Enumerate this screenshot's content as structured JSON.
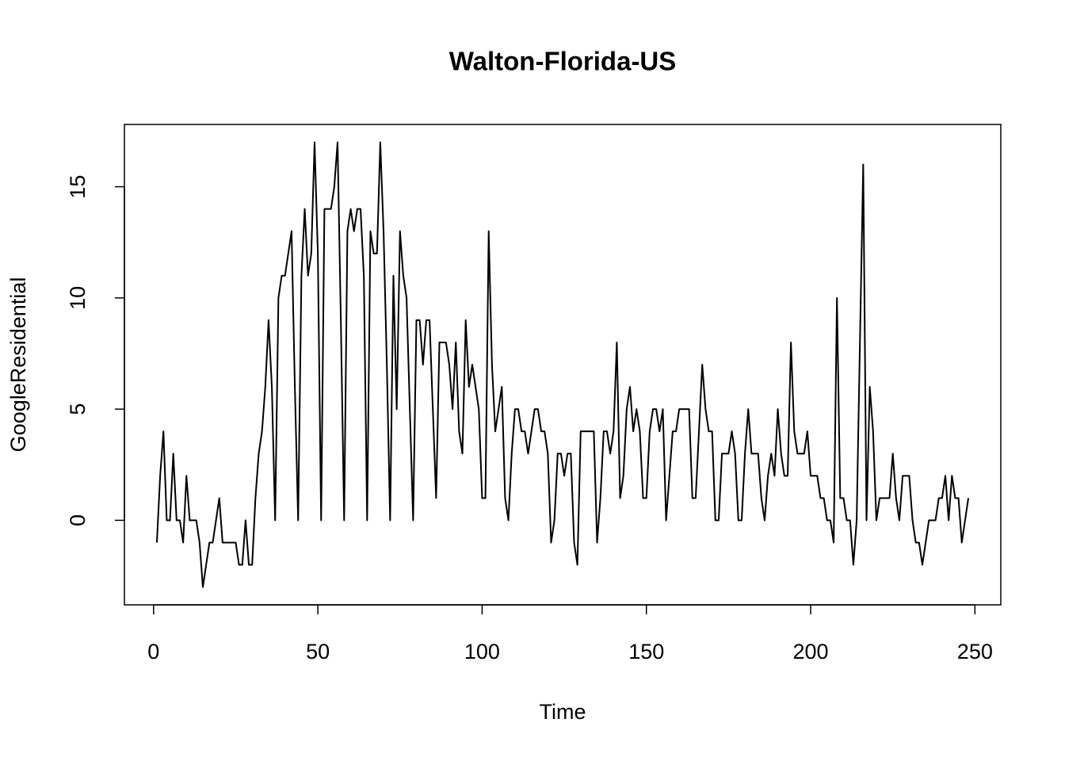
{
  "chart_data": {
    "type": "line",
    "title": "Walton-Florida-US",
    "x_label": "Time",
    "y_label": "GoogleResidential",
    "x": [
      1,
      2,
      3,
      4,
      5,
      6,
      7,
      8,
      9,
      10,
      11,
      12,
      13,
      14,
      15,
      16,
      17,
      18,
      19,
      20,
      21,
      22,
      23,
      24,
      25,
      26,
      27,
      28,
      29,
      30,
      31,
      32,
      33,
      34,
      35,
      36,
      37,
      38,
      39,
      40,
      41,
      42,
      43,
      44,
      45,
      46,
      47,
      48,
      49,
      50,
      51,
      52,
      53,
      54,
      55,
      56,
      57,
      58,
      59,
      60,
      61,
      62,
      63,
      64,
      65,
      66,
      67,
      68,
      69,
      70,
      71,
      72,
      73,
      74,
      75,
      76,
      77,
      78,
      79,
      80,
      81,
      82,
      83,
      84,
      85,
      86,
      87,
      88,
      89,
      90,
      91,
      92,
      93,
      94,
      95,
      96,
      97,
      98,
      99,
      100,
      101,
      102,
      103,
      104,
      105,
      106,
      107,
      108,
      109,
      110,
      111,
      112,
      113,
      114,
      115,
      116,
      117,
      118,
      119,
      120,
      121,
      122,
      123,
      124,
      125,
      126,
      127,
      128,
      129,
      130,
      131,
      132,
      133,
      134,
      135,
      136,
      137,
      138,
      139,
      140,
      141,
      142,
      143,
      144,
      145,
      146,
      147,
      148,
      149,
      150,
      151,
      152,
      153,
      154,
      155,
      156,
      157,
      158,
      159,
      160,
      161,
      162,
      163,
      164,
      165,
      166,
      167,
      168,
      169,
      170,
      171,
      172,
      173,
      174,
      175,
      176,
      177,
      178,
      179,
      180,
      181,
      182,
      183,
      184,
      185,
      186,
      187,
      188,
      189,
      190,
      191,
      192,
      193,
      194,
      195,
      196,
      197,
      198,
      199,
      200,
      201,
      202,
      203,
      204,
      205,
      206,
      207,
      208,
      209,
      210,
      211,
      212,
      213,
      214,
      215,
      216,
      217,
      218,
      219,
      220,
      221,
      222,
      223,
      224,
      225,
      226,
      227,
      228,
      229,
      230,
      231,
      232,
      233,
      234,
      235,
      236,
      237,
      238,
      239,
      240,
      241,
      242,
      243,
      244,
      245,
      246,
      247,
      248
    ],
    "series": [
      {
        "name": "GoogleResidential",
        "color": "#000000",
        "values": [
          -1,
          2,
          4,
          0,
          0,
          3,
          0,
          0,
          -1,
          2,
          0,
          0,
          0,
          -1,
          -3,
          -2,
          -1,
          -1,
          0,
          1,
          -1,
          -1,
          -1,
          -1,
          -1,
          -2,
          -2,
          0,
          -2,
          -2,
          1,
          3,
          4,
          6,
          9,
          6,
          0,
          10,
          11,
          11,
          12,
          13,
          6,
          0,
          11,
          14,
          11,
          12,
          17,
          12,
          0,
          14,
          14,
          14,
          15,
          17,
          9,
          0,
          13,
          14,
          13,
          14,
          14,
          11,
          0,
          13,
          12,
          12,
          17,
          13,
          7,
          0,
          11,
          5,
          13,
          11,
          10,
          5,
          0,
          9,
          9,
          7,
          9,
          9,
          5,
          1,
          8,
          8,
          8,
          7,
          5,
          8,
          4,
          3,
          9,
          6,
          7,
          6,
          5,
          1,
          1,
          13,
          7,
          4,
          5,
          6,
          1,
          0,
          3,
          5,
          5,
          4,
          4,
          3,
          4,
          5,
          5,
          4,
          4,
          3,
          -1,
          0,
          3,
          3,
          2,
          3,
          3,
          -1,
          -2,
          4,
          4,
          4,
          4,
          4,
          -1,
          1,
          4,
          4,
          3,
          4,
          8,
          1,
          2,
          5,
          6,
          4,
          5,
          4,
          1,
          1,
          4,
          5,
          5,
          4,
          5,
          0,
          2,
          4,
          4,
          5,
          5,
          5,
          5,
          1,
          1,
          4,
          7,
          5,
          4,
          4,
          0,
          0,
          3,
          3,
          3,
          4,
          3,
          0,
          0,
          3,
          5,
          3,
          3,
          3,
          1,
          0,
          2,
          3,
          2,
          5,
          3,
          2,
          2,
          8,
          4,
          3,
          3,
          3,
          4,
          2,
          2,
          2,
          1,
          1,
          0,
          0,
          -1,
          10,
          1,
          1,
          0,
          0,
          -2,
          0,
          8,
          16,
          0,
          6,
          4,
          0,
          1,
          1,
          1,
          1,
          3,
          1,
          0,
          2,
          2,
          2,
          0,
          -1,
          -1,
          -2,
          -1,
          0,
          0,
          0,
          1,
          1,
          2,
          0,
          2,
          1,
          1,
          -1,
          0,
          1
        ]
      }
    ],
    "xlim": [
      -8.88,
      257.88
    ],
    "xticks": [
      0,
      50,
      100,
      150,
      200,
      250
    ],
    "ylim": [
      -3.8,
      17.8
    ],
    "yticks": [
      0,
      5,
      10,
      15
    ]
  }
}
